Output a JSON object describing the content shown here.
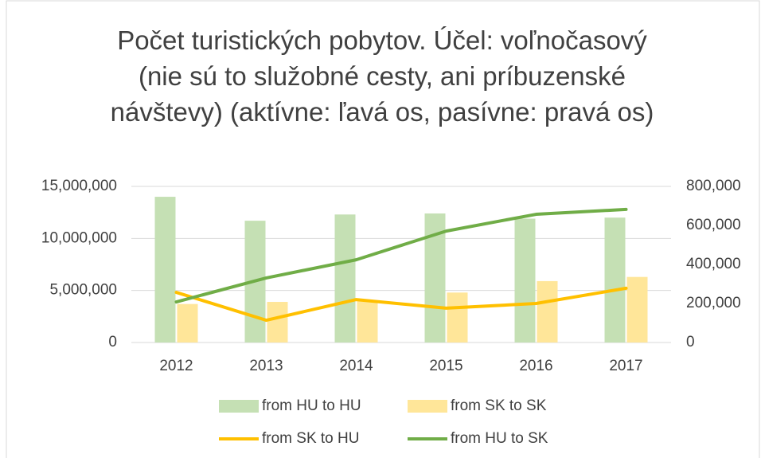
{
  "chart_data": {
    "type": "bar-line",
    "title": "Počet turistických pobytov. Účel: voľnočasový (nie sú to služobné cesty, ani príbuzenské návštevy) (aktívne: ľavá os, pasívne: pravá os)",
    "categories": [
      "2012",
      "2013",
      "2014",
      "2015",
      "2016",
      "2017"
    ],
    "series": [
      {
        "name": "from HU to HU",
        "type": "bar",
        "color": "#c5e0b4",
        "values": [
          14000000,
          11700000,
          12300000,
          12400000,
          11900000,
          12000000
        ]
      },
      {
        "name": "from SK to SK",
        "type": "bar",
        "color": "#ffe699",
        "values": [
          3700000,
          3900000,
          4000000,
          4800000,
          5900000,
          6300000
        ]
      },
      {
        "name": "from SK to HU",
        "type": "line",
        "axis": "y2",
        "color": "#ffc000",
        "values": [
          257000,
          114000,
          220000,
          176000,
          200000,
          278000
        ]
      },
      {
        "name": "from HU to SK",
        "type": "line",
        "axis": "y2",
        "color": "#70ad47",
        "values": [
          208000,
          331000,
          424000,
          571000,
          657000,
          682000
        ]
      }
    ],
    "ylim": [
      0,
      15000000
    ],
    "yticks": [
      0,
      {
        "value": 5000000,
        "label": "5,000,000"
      },
      {
        "value": 10000000,
        "label": "10,000,000"
      },
      {
        "value": 15000000,
        "label": "15,000,000"
      }
    ],
    "y2lim": [
      0,
      800000
    ],
    "y2ticks": [
      0,
      {
        "value": 200000,
        "label": "200,000"
      },
      {
        "value": 400000,
        "label": "400,000"
      },
      {
        "value": 600000,
        "label": "600,000"
      },
      {
        "value": 800000,
        "label": "800,000"
      }
    ],
    "grid": true
  }
}
